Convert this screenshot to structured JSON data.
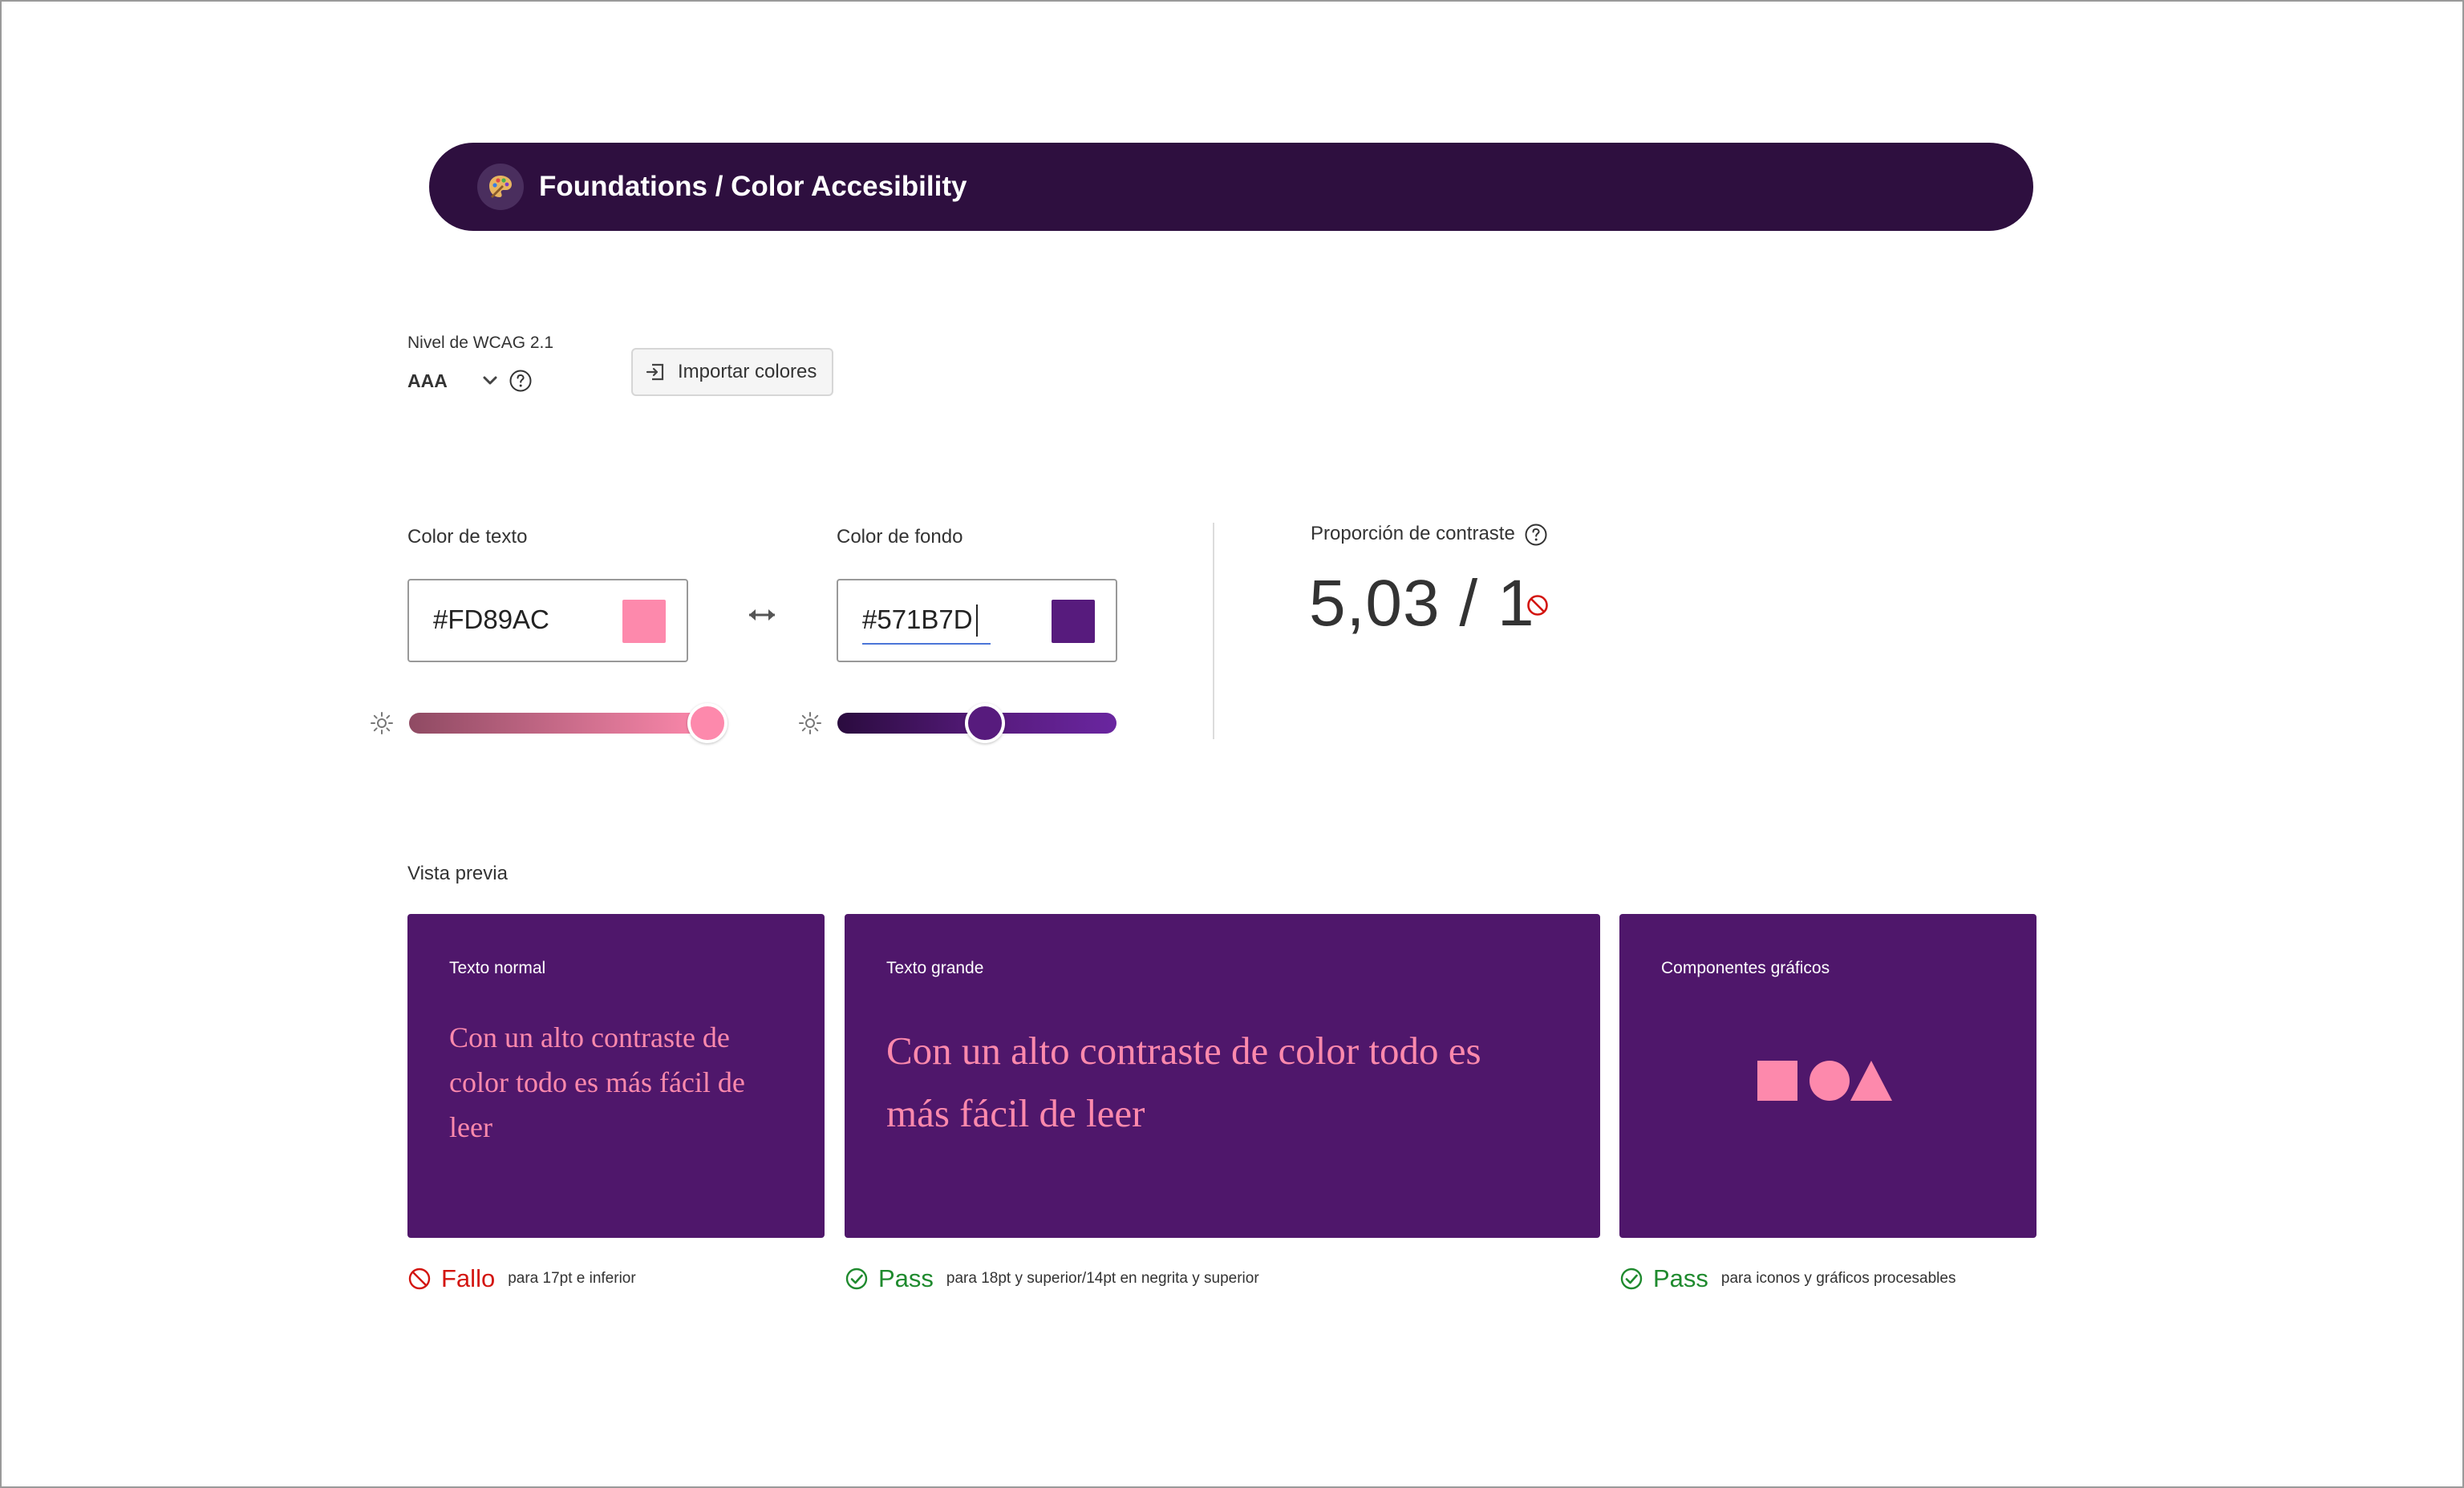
{
  "header": {
    "title": "Foundations / Color Accesibility",
    "logo_icon": "palette-icon"
  },
  "wcag": {
    "label": "Nivel de WCAG 2.1",
    "value": "AAA"
  },
  "import_button": {
    "label": "Importar colores"
  },
  "text_color": {
    "label": "Color de texto",
    "value": "#FD89AC",
    "slider_brightness": 1.0
  },
  "background_color": {
    "label": "Color de fondo",
    "value": "#571B7D",
    "slider_brightness": 0.53
  },
  "contrast": {
    "label": "Proporción de contraste",
    "value": "5,03 / 1"
  },
  "preview": {
    "label": "Vista previa",
    "normal": {
      "title": "Texto normal",
      "sample": "Con un alto contraste de color todo es más fácil de leer"
    },
    "large": {
      "title": "Texto grande",
      "sample": "Con un alto contraste de color todo es más fácil de leer"
    },
    "graphics": {
      "title": "Componentes gráficos"
    }
  },
  "results": {
    "normal": {
      "status": "Fallo",
      "desc": "para 17pt e inferior"
    },
    "large": {
      "status": "Pass",
      "desc": "para 18pt y superior/14pt en negrita y superior"
    },
    "graphics": {
      "status": "Pass",
      "desc": "para iconos y gráficos procesables"
    }
  },
  "colors": {
    "header_bg": "#2e0f3f",
    "text_color": "#FD89AC",
    "preview_bg": "#4f176b",
    "fail": "#d31510",
    "pass": "#1f8a2e"
  }
}
